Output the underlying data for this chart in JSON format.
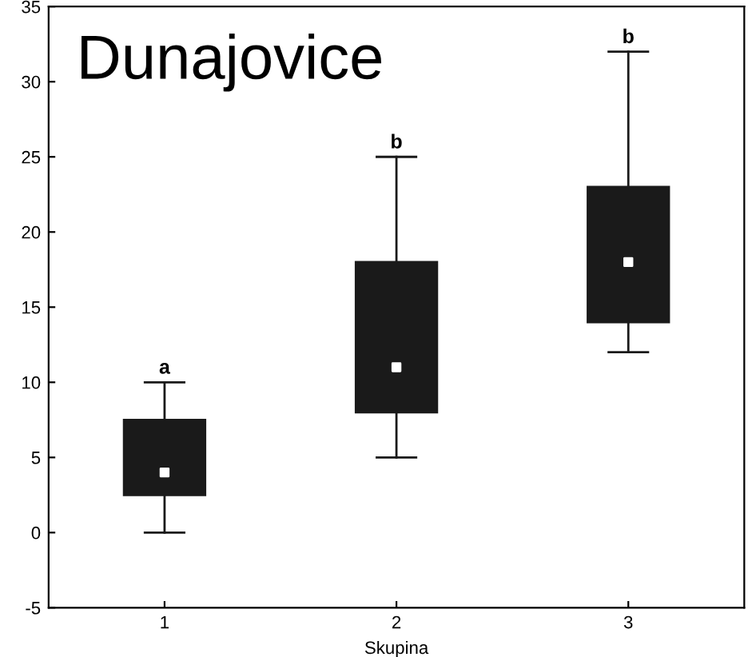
{
  "chart_data": {
    "type": "box",
    "title": "Dunajovice",
    "xlabel": "Skupina",
    "categories": [
      "1",
      "2",
      "3"
    ],
    "boxes": [
      {
        "low": 0,
        "q1": 2.5,
        "median": 4,
        "q3": 7.5,
        "high": 10
      },
      {
        "low": 5,
        "q1": 8,
        "median": 11,
        "q3": 18,
        "high": 25
      },
      {
        "low": 12,
        "q1": 14,
        "median": 18,
        "q3": 23,
        "high": 32
      }
    ],
    "color": "#1a1a1a",
    "ylim": [
      -5,
      35
    ],
    "yticks": [
      -5,
      0,
      5,
      10,
      15,
      20,
      25,
      30,
      35
    ],
    "grid": false,
    "annotations": [
      {
        "text": "a",
        "x": "1",
        "y": 10
      },
      {
        "text": "b",
        "x": "2",
        "y": 25
      },
      {
        "text": "b",
        "x": "3",
        "y": 32
      }
    ]
  }
}
